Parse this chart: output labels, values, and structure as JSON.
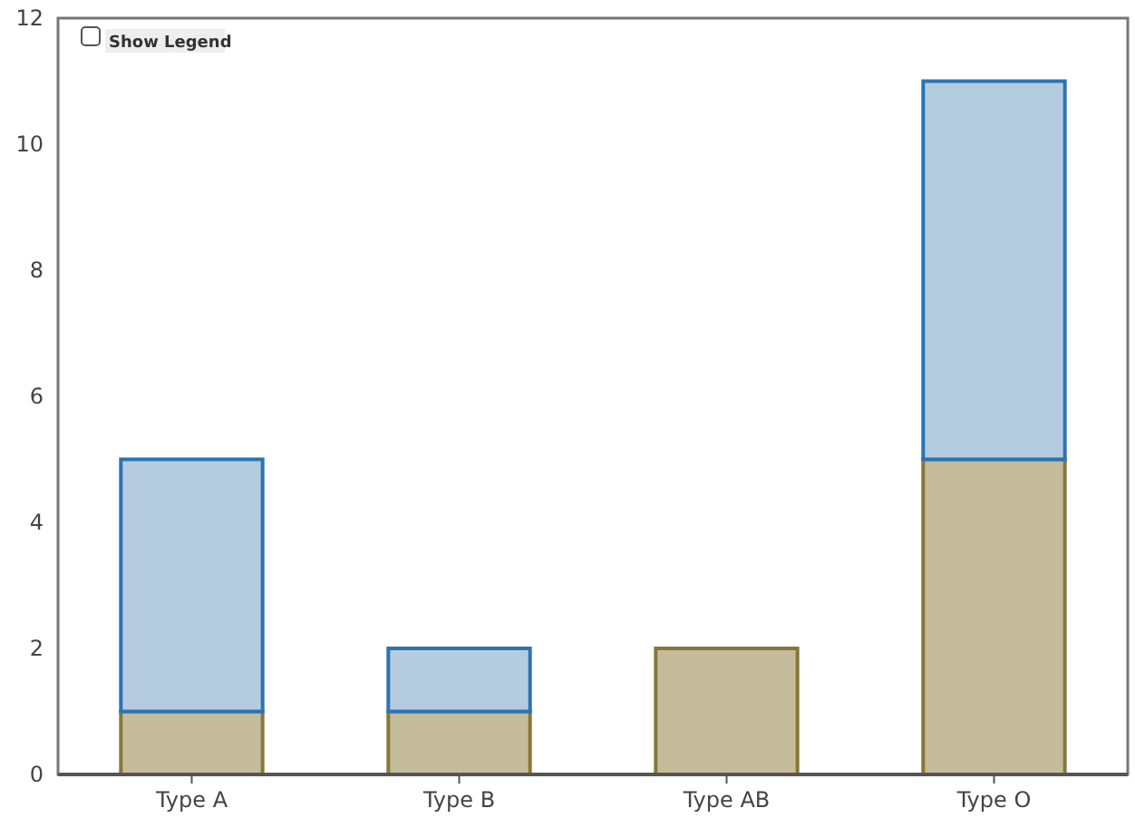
{
  "chart_data": {
    "type": "bar",
    "stacked": true,
    "categories": [
      "Type A",
      "Type B",
      "Type AB",
      "Type O"
    ],
    "series": [
      {
        "color": "#c4bc9a",
        "values": [
          1,
          1,
          2,
          5
        ]
      },
      {
        "color": "#b5cce0",
        "values": [
          4,
          1,
          0,
          6
        ]
      }
    ],
    "ylim": [
      0,
      12
    ],
    "yticks": [
      0,
      2,
      4,
      6,
      8,
      10,
      12
    ],
    "grid": false,
    "annotations": [
      "Show Legend"
    ]
  }
}
